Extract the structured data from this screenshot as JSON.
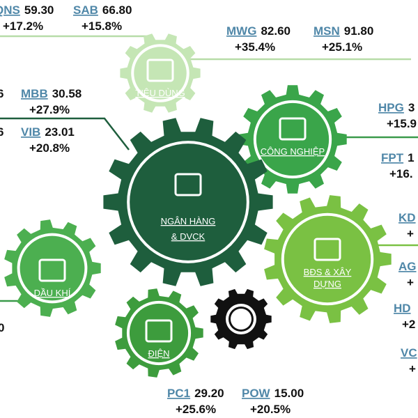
{
  "sectors": [
    {
      "label": "TIÊU DÙNG"
    },
    {
      "label": "CÔNG NGHIỆP"
    },
    {
      "label": "NGÂN HÀNG & DVCK"
    },
    {
      "label": "DẦU KHÍ"
    },
    {
      "label": "BĐS & XÂY DỰNG"
    },
    {
      "label": "ĐIỆN"
    }
  ],
  "stocks": [
    {
      "ticker": "QNS",
      "price": "59.30",
      "change": "+17.2%"
    },
    {
      "ticker": "SAB",
      "price": "66.80",
      "change": "+15.8%"
    },
    {
      "ticker": "MWG",
      "price": "82.60",
      "change": "+35.4%"
    },
    {
      "ticker": "MSN",
      "price": "91.80",
      "change": "+25.1%"
    },
    {
      "price": "6"
    },
    {
      "ticker": "MBB",
      "price": "30.58",
      "change": "+27.9%"
    },
    {
      "price": "6"
    },
    {
      "ticker": "VIB",
      "price": "23.01",
      "change": "+20.8%"
    },
    {
      "ticker": "HPG",
      "price": "3",
      "change": "+15.9"
    },
    {
      "ticker": "FPT",
      "price": "1",
      "change": "+16."
    },
    {
      "ticker": "KD",
      "change": "+"
    },
    {
      "ticker": "AG",
      "change": "+"
    },
    {
      "ticker": "HD",
      "change": "+2"
    },
    {
      "ticker": "VC",
      "change": "+"
    },
    {
      "price": "0"
    },
    {
      "ticker": "PC1",
      "price": "29.20",
      "change": "+25.6%"
    },
    {
      "ticker": "POW",
      "price": "15.00",
      "change": "+20.5%"
    }
  ]
}
